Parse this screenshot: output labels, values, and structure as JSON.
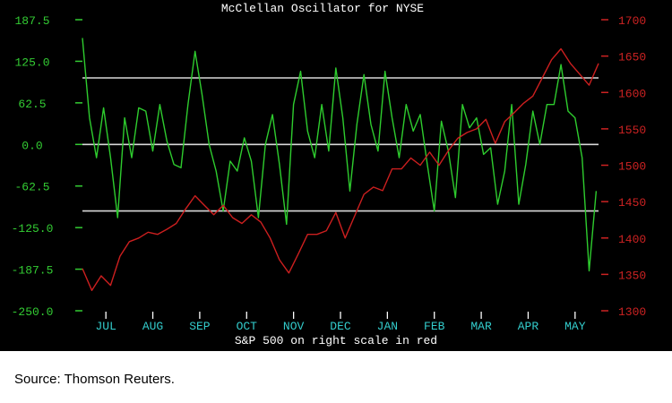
{
  "chart_data": {
    "type": "line",
    "title": "McClellan Oscillator for NYSE",
    "xlabel": "S&P 500 on right scale in red",
    "x_tick_labels": [
      "JUL",
      "AUG",
      "SEP",
      "OCT",
      "NOV",
      "DEC",
      "JAN",
      "FEB",
      "MAR",
      "APR",
      "MAY"
    ],
    "left_axis": {
      "ticks": [
        "187.5",
        "125.0",
        "62.5",
        "0.0",
        "-62.5",
        "-125.0",
        "-187.5",
        "-250.0"
      ],
      "range": [
        -250,
        187.5
      ],
      "color": "#33cc33"
    },
    "right_axis": {
      "ticks": [
        "1700",
        "1650",
        "1600",
        "1550",
        "1500",
        "1450",
        "1400",
        "1350",
        "1300"
      ],
      "range": [
        1300,
        1700
      ],
      "color": "#cc2222"
    },
    "reference_lines": [
      100,
      0,
      -100
    ],
    "x_range": [
      0,
      11
    ],
    "series": [
      {
        "axis": "left",
        "color": "#2ecc2e",
        "x": [
          0.0,
          0.15,
          0.3,
          0.45,
          0.6,
          0.75,
          0.9,
          1.05,
          1.2,
          1.35,
          1.5,
          1.65,
          1.8,
          1.95,
          2.1,
          2.25,
          2.4,
          2.55,
          2.7,
          2.85,
          3.0,
          3.15,
          3.3,
          3.45,
          3.6,
          3.75,
          3.9,
          4.05,
          4.2,
          4.35,
          4.5,
          4.65,
          4.8,
          4.95,
          5.1,
          5.25,
          5.4,
          5.55,
          5.7,
          5.85,
          6.0,
          6.15,
          6.3,
          6.45,
          6.6,
          6.75,
          6.9,
          7.05,
          7.2,
          7.35,
          7.5,
          7.65,
          7.8,
          7.95,
          8.1,
          8.25,
          8.4,
          8.55,
          8.7,
          8.85,
          9.0,
          9.15,
          9.3,
          9.45,
          9.6,
          9.75,
          9.9,
          10.05,
          10.2,
          10.35,
          10.5,
          10.65,
          10.8,
          10.95
        ],
        "values": [
          160,
          40,
          -20,
          55,
          -20,
          -110,
          40,
          -20,
          55,
          50,
          -10,
          60,
          5,
          -30,
          -35,
          60,
          140,
          75,
          0,
          -40,
          -100,
          -25,
          -40,
          10,
          -25,
          -110,
          0,
          45,
          -30,
          -120,
          60,
          110,
          20,
          -20,
          60,
          -10,
          115,
          40,
          -70,
          30,
          105,
          30,
          -10,
          110,
          40,
          -20,
          60,
          20,
          45,
          -30,
          -100,
          35,
          -10,
          -80,
          60,
          25,
          40,
          -15,
          -5,
          -90,
          -40,
          60,
          -90,
          -30,
          50,
          0,
          60,
          60,
          120,
          50,
          40,
          -20,
          -190,
          -70
        ]
      },
      {
        "axis": "right",
        "color": "#cc1f1f",
        "x": [
          0.0,
          0.2,
          0.4,
          0.6,
          0.8,
          1.0,
          1.2,
          1.4,
          1.6,
          1.8,
          2.0,
          2.2,
          2.4,
          2.6,
          2.8,
          3.0,
          3.2,
          3.4,
          3.6,
          3.8,
          4.0,
          4.2,
          4.4,
          4.6,
          4.8,
          5.0,
          5.2,
          5.4,
          5.6,
          5.8,
          6.0,
          6.2,
          6.4,
          6.6,
          6.8,
          7.0,
          7.2,
          7.4,
          7.6,
          7.8,
          8.0,
          8.2,
          8.4,
          8.6,
          8.8,
          9.0,
          9.2,
          9.4,
          9.6,
          9.8,
          10.0,
          10.2,
          10.4,
          10.6,
          10.8,
          11.0
        ],
        "values": [
          1358,
          1328,
          1348,
          1335,
          1375,
          1395,
          1400,
          1408,
          1405,
          1412,
          1420,
          1440,
          1458,
          1445,
          1432,
          1445,
          1428,
          1420,
          1432,
          1422,
          1400,
          1370,
          1352,
          1378,
          1405,
          1405,
          1410,
          1435,
          1400,
          1430,
          1460,
          1470,
          1465,
          1495,
          1495,
          1510,
          1500,
          1518,
          1500,
          1520,
          1537,
          1545,
          1550,
          1563,
          1530,
          1560,
          1572,
          1585,
          1595,
          1620,
          1645,
          1660,
          1640,
          1625,
          1610,
          1640
        ]
      }
    ]
  },
  "source": "Source:  Thomson Reuters."
}
